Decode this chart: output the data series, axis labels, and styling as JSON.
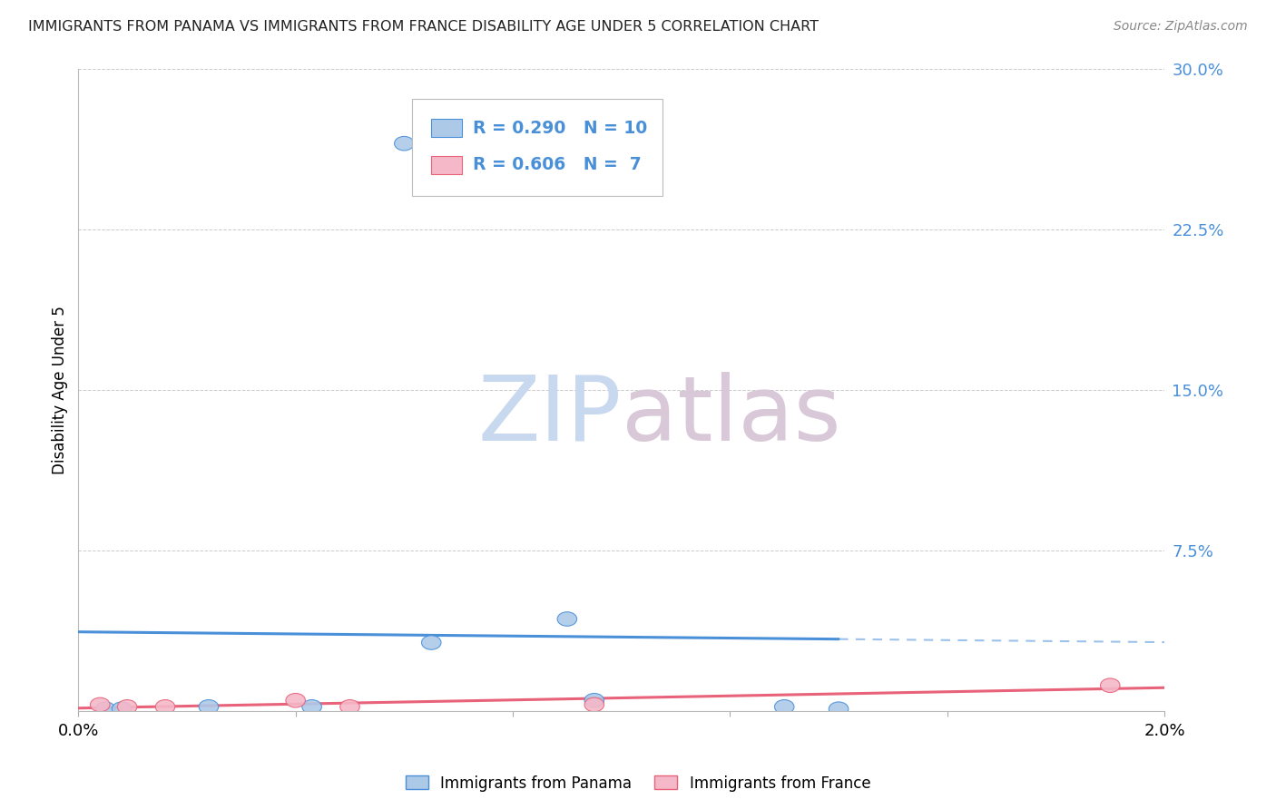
{
  "title": "IMMIGRANTS FROM PANAMA VS IMMIGRANTS FROM FRANCE DISABILITY AGE UNDER 5 CORRELATION CHART",
  "source": "Source: ZipAtlas.com",
  "ylabel": "Disability Age Under 5",
  "xlim": [
    0.0,
    0.02
  ],
  "ylim": [
    0.0,
    0.3
  ],
  "xticks": [
    0.0,
    0.004,
    0.008,
    0.012,
    0.016,
    0.02
  ],
  "xtick_labels": [
    "0.0%",
    "",
    "",
    "",
    "",
    "2.0%"
  ],
  "ytick_labels": [
    "",
    "7.5%",
    "15.0%",
    "22.5%",
    "30.0%"
  ],
  "ytick_vals": [
    0.0,
    0.075,
    0.15,
    0.225,
    0.3
  ],
  "panama_x": [
    0.0005,
    0.0008,
    0.0024,
    0.0043,
    0.006,
    0.0065,
    0.009,
    0.0095,
    0.013,
    0.014
  ],
  "panama_y": [
    0.001,
    0.001,
    0.002,
    0.002,
    0.265,
    0.032,
    0.043,
    0.005,
    0.002,
    0.001
  ],
  "france_x": [
    0.0004,
    0.0009,
    0.0016,
    0.004,
    0.005,
    0.0095,
    0.019
  ],
  "france_y": [
    0.003,
    0.002,
    0.002,
    0.005,
    0.002,
    0.003,
    0.012
  ],
  "panama_color": "#adc9e8",
  "france_color": "#f5b8c8",
  "panama_line_color": "#4a90d9",
  "france_line_color": "#e8627a",
  "r_panama": 0.29,
  "n_panama": 10,
  "r_france": 0.606,
  "n_france": 7,
  "watermark_zip": "ZIP",
  "watermark_atlas": "atlas",
  "watermark_color_zip": "#c8d8ee",
  "watermark_color_atlas": "#d8c8d8",
  "background_color": "#ffffff",
  "grid_color": "#cccccc",
  "legend_text_color": "#4a90d9",
  "source_color": "#888888",
  "title_color": "#222222"
}
